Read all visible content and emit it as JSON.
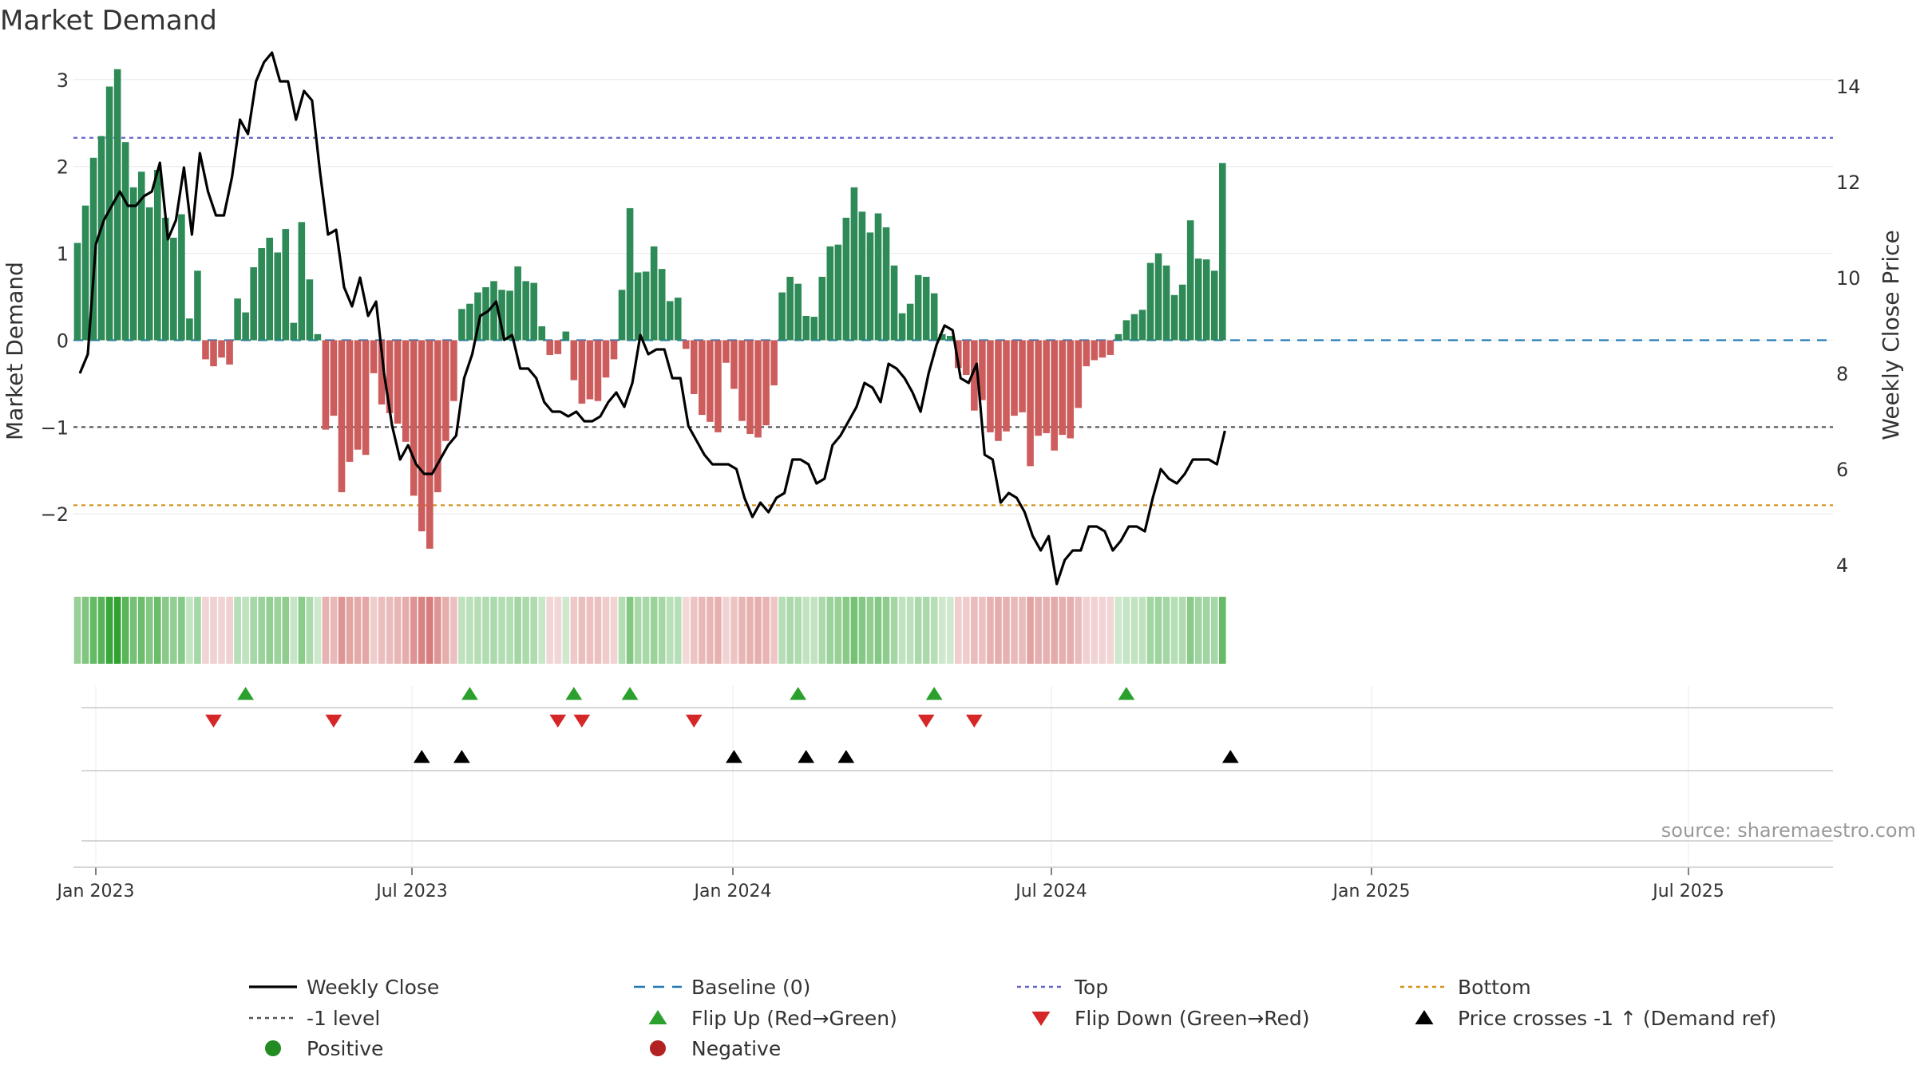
{
  "chart_data": {
    "type": "bar",
    "title": "Market Demand",
    "ylabel_left": "Market Demand",
    "ylabel_right": "Weekly Close Price",
    "ylim_left": [
      -2.65,
      3.2
    ],
    "ylim_right": [
      3.0,
      15.0
    ],
    "yticks_left": [
      "3",
      "2",
      "1",
      "0",
      "−1",
      "−2"
    ],
    "yticks_right": [
      "14",
      "12",
      "10",
      "8",
      "6",
      "4"
    ],
    "xticks": [
      "Jan 2023",
      "Jul 2023",
      "Jan 2024",
      "Jul 2024",
      "Jan 2025",
      "Jul 2025"
    ],
    "reference_lines": {
      "top": 2.33,
      "minus_one_level": -1.0,
      "bottom": -1.9,
      "baseline": 0
    },
    "source": "source: sharemaestro.com",
    "colors": {
      "positive": "#2e8b57",
      "negative": "#cd5c5c",
      "price": "#000000",
      "top": "#6666cc",
      "level": "#555555",
      "bottom": "#d4901a",
      "baseline": "#1f77b4",
      "flip_up": "#2ca02c",
      "flip_down": "#d62728",
      "legend_positive": "#228b22",
      "legend_negative": "#b22222"
    },
    "demand": [
      1.12,
      1.55,
      2.1,
      2.35,
      2.92,
      3.12,
      2.28,
      1.76,
      1.94,
      1.53,
      1.96,
      1.41,
      1.18,
      1.45,
      0.25,
      0.8,
      -0.22,
      -0.3,
      -0.2,
      -0.28,
      0.48,
      0.32,
      0.84,
      1.06,
      1.18,
      1.01,
      1.28,
      0.2,
      1.36,
      0.7,
      0.07,
      -1.03,
      -0.87,
      -1.75,
      -1.4,
      -1.26,
      -1.32,
      -0.38,
      -0.74,
      -0.84,
      -0.96,
      -1.17,
      -1.79,
      -2.2,
      -2.4,
      -1.75,
      -1.16,
      -0.7,
      0.36,
      0.42,
      0.55,
      0.61,
      0.68,
      0.58,
      0.57,
      0.85,
      0.68,
      0.66,
      0.16,
      -0.17,
      -0.16,
      0.1,
      -0.46,
      -0.73,
      -0.68,
      -0.7,
      -0.43,
      -0.22,
      0.58,
      1.52,
      0.78,
      0.79,
      1.08,
      0.82,
      0.45,
      0.49,
      -0.1,
      -0.62,
      -0.86,
      -0.94,
      -1.06,
      -0.26,
      -0.56,
      -0.93,
      -1.08,
      -1.12,
      -0.98,
      -0.52,
      0.55,
      0.73,
      0.65,
      0.28,
      0.27,
      0.73,
      1.08,
      1.1,
      1.41,
      1.76,
      1.48,
      1.24,
      1.46,
      1.3,
      0.86,
      0.31,
      0.42,
      0.75,
      0.73,
      0.54,
      0.07,
      0.05,
      -0.32,
      -0.4,
      -0.81,
      -0.69,
      -1.06,
      -1.16,
      -1.05,
      -0.87,
      -0.83,
      -1.45,
      -1.1,
      -1.07,
      -1.27,
      -1.09,
      -1.13,
      -0.78,
      -0.3,
      -0.23,
      -0.2,
      -0.17,
      0.07,
      0.23,
      0.3,
      0.35,
      0.89,
      1.0,
      0.86,
      0.52,
      0.64,
      1.38,
      0.94,
      0.93,
      0.8,
      2.04
    ],
    "price": [
      8.0,
      8.4,
      10.7,
      11.2,
      11.5,
      11.8,
      11.5,
      11.5,
      11.7,
      11.8,
      12.4,
      10.8,
      11.2,
      12.3,
      10.9,
      12.6,
      11.8,
      11.3,
      11.3,
      12.1,
      13.3,
      13.0,
      14.1,
      14.5,
      14.7,
      14.1,
      14.1,
      13.3,
      13.9,
      13.7,
      12.2,
      10.9,
      11.0,
      9.8,
      9.4,
      10.0,
      9.2,
      9.5,
      8.0,
      6.9,
      6.2,
      6.5,
      6.1,
      5.9,
      5.9,
      6.2,
      6.5,
      6.7,
      7.9,
      8.4,
      9.2,
      9.3,
      9.5,
      8.7,
      8.8,
      8.1,
      8.1,
      7.9,
      7.4,
      7.2,
      7.2,
      7.1,
      7.2,
      7.0,
      7.0,
      7.1,
      7.4,
      7.6,
      7.3,
      7.8,
      8.8,
      8.4,
      8.5,
      8.5,
      7.9,
      7.9,
      6.9,
      6.6,
      6.3,
      6.1,
      6.1,
      6.1,
      6.0,
      5.4,
      5.0,
      5.3,
      5.1,
      5.4,
      5.5,
      6.2,
      6.2,
      6.1,
      5.7,
      5.8,
      6.5,
      6.7,
      7.0,
      7.3,
      7.8,
      7.7,
      7.4,
      8.2,
      8.1,
      7.9,
      7.6,
      7.2,
      8.0,
      8.6,
      9.0,
      8.9,
      7.9,
      7.8,
      8.2,
      6.3,
      6.2,
      5.3,
      5.5,
      5.4,
      5.1,
      4.6,
      4.3,
      4.6,
      3.6,
      4.1,
      4.3,
      4.3,
      4.8,
      4.8,
      4.7,
      4.3,
      4.5,
      4.8,
      4.8,
      4.7,
      5.4,
      6.0,
      5.8,
      5.7,
      5.9,
      6.2,
      6.2,
      6.2,
      6.1,
      6.8
    ],
    "flip_up_weeks": [
      20,
      48,
      61,
      68,
      89,
      106,
      130
    ],
    "flip_down_weeks": [
      16,
      31,
      59,
      62,
      76,
      105,
      111
    ],
    "price_cross_weeks": [
      42,
      47,
      81,
      90,
      95,
      143
    ],
    "legend": [
      [
        "Weekly Close",
        "Baseline (0)",
        "Top",
        "Bottom"
      ],
      [
        "-1 level",
        "Flip Up (Red→Green)",
        "Flip Down (Green→Red)",
        "Price crosses -1 ↑ (Demand ref)"
      ],
      [
        "Positive",
        "Negative"
      ]
    ]
  }
}
